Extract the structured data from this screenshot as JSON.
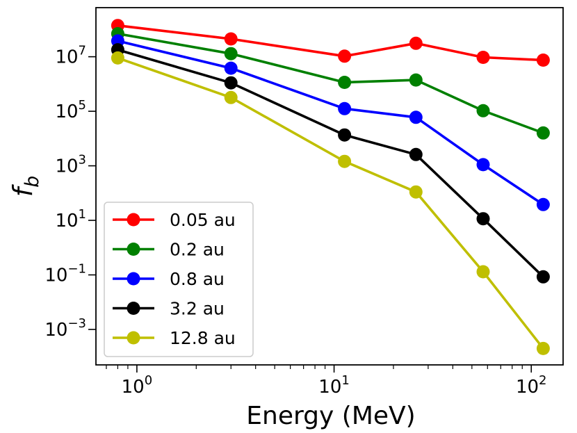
{
  "chart_data": {
    "type": "line",
    "title": "",
    "xlabel": "Energy (MeV)",
    "ylabel_base": "f",
    "ylabel_sub": "b",
    "xscale": "log",
    "yscale": "log",
    "xlim": [
      0.62,
      145
    ],
    "ylim_log10": [
      -4.3,
      8.8
    ],
    "grid": false,
    "legend_position": "lower-left",
    "x": [
      0.8,
      3,
      11.3,
      26,
      57,
      115
    ],
    "x_ticks": [
      {
        "value": 1,
        "base": "10",
        "exp": "0"
      },
      {
        "value": 10,
        "base": "10",
        "exp": "1"
      },
      {
        "value": 100,
        "base": "10",
        "exp": "2"
      }
    ],
    "y_ticks": [
      {
        "exp_value": 7,
        "base": "10",
        "exp": "7"
      },
      {
        "exp_value": 5,
        "base": "10",
        "exp": "5"
      },
      {
        "exp_value": 3,
        "base": "10",
        "exp": "3"
      },
      {
        "exp_value": 1,
        "base": "10",
        "exp": "1"
      },
      {
        "exp_value": -1,
        "base": "10",
        "exp": "−1"
      },
      {
        "exp_value": -3,
        "base": "10",
        "exp": "−3"
      }
    ],
    "series": [
      {
        "name": "0.05 au",
        "color": "#ff0000",
        "values": [
          140000000.0,
          45000000.0,
          10500000.0,
          31000000.0,
          9500000.0,
          7500000.0
        ]
      },
      {
        "name": "0.2 au",
        "color": "#008000",
        "values": [
          70000000.0,
          13000000.0,
          1150000.0,
          1400000.0,
          105000.0,
          16000.0
        ]
      },
      {
        "name": "0.8 au",
        "color": "#0000ff",
        "values": [
          38000000.0,
          3800000.0,
          125000.0,
          60000.0,
          1100.0,
          38
        ]
      },
      {
        "name": "3.2 au",
        "color": "#000000",
        "values": [
          18000000.0,
          1100000.0,
          13500.0,
          2600.0,
          11.5,
          0.085
        ]
      },
      {
        "name": "12.8 au",
        "color": "#bfbf00",
        "values": [
          9000000.0,
          320000.0,
          1450.0,
          110,
          0.13,
          0.0002
        ]
      }
    ]
  }
}
